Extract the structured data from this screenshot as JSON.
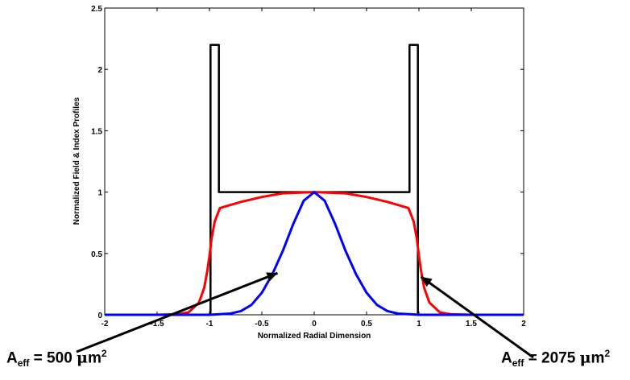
{
  "chart_data": {
    "type": "line",
    "title": "",
    "xlabel": "Normalized Radial Dimension",
    "ylabel": "Normalized Field & Index Profiles",
    "xlim": [
      -2,
      2
    ],
    "ylim": [
      0,
      2.5
    ],
    "grid": false,
    "x_ticks": [
      "-2",
      "-1.5",
      "-1",
      "-0.5",
      "0",
      "0.5",
      "1",
      "1.5",
      "2"
    ],
    "y_ticks": [
      "0",
      "0.5",
      "1",
      "1.5",
      "2",
      "2.5"
    ],
    "series": [
      {
        "color": "#000000",
        "x": [
          -2,
          -0.99,
          -0.99,
          -0.99,
          -0.91,
          -0.91,
          -0.91,
          0.91,
          0.91,
          0.91,
          0.99,
          0.99,
          0.99,
          2
        ],
        "y": [
          0,
          0,
          0,
          2.2,
          2.2,
          2.2,
          1.0,
          1.0,
          1.0,
          2.2,
          2.2,
          2.2,
          0,
          0
        ]
      },
      {
        "color": "#ff0000",
        "x": [
          -2,
          -1.5,
          -1.3,
          -1.2,
          -1.1,
          -1.05,
          -1.02,
          -1.0,
          -0.98,
          -0.95,
          -0.9,
          -0.7,
          -0.5,
          -0.3,
          0,
          0.3,
          0.5,
          0.7,
          0.9,
          0.95,
          0.98,
          1.0,
          1.02,
          1.05,
          1.1,
          1.2,
          1.3,
          1.5,
          2
        ],
        "y": [
          0,
          0,
          0.005,
          0.02,
          0.1,
          0.22,
          0.36,
          0.48,
          0.62,
          0.76,
          0.87,
          0.92,
          0.96,
          0.99,
          1.0,
          0.99,
          0.96,
          0.92,
          0.87,
          0.76,
          0.62,
          0.48,
          0.36,
          0.22,
          0.1,
          0.02,
          0.005,
          0,
          0
        ]
      },
      {
        "color": "#0000ff",
        "x": [
          -2,
          -1.0,
          -0.8,
          -0.7,
          -0.6,
          -0.5,
          -0.4,
          -0.3,
          -0.2,
          -0.1,
          0,
          0.1,
          0.2,
          0.3,
          0.4,
          0.5,
          0.6,
          0.7,
          0.8,
          1.0,
          2
        ],
        "y": [
          0,
          0,
          0.01,
          0.03,
          0.08,
          0.18,
          0.33,
          0.52,
          0.74,
          0.93,
          1.0,
          0.93,
          0.74,
          0.52,
          0.33,
          0.18,
          0.08,
          0.03,
          0.01,
          0,
          0
        ]
      }
    ],
    "annotations": [
      {
        "base": "A",
        "sub": "eff",
        "text": " = 500 ",
        "mu": "μ",
        "unit": "m",
        "sup": "2",
        "target": [
          -0.35,
          0.34
        ]
      },
      {
        "base": "A",
        "sub": "eff",
        "text": " = 2075 ",
        "mu": "μ",
        "unit": "m",
        "sup": "2",
        "target": [
          1.02,
          0.31
        ]
      }
    ]
  }
}
